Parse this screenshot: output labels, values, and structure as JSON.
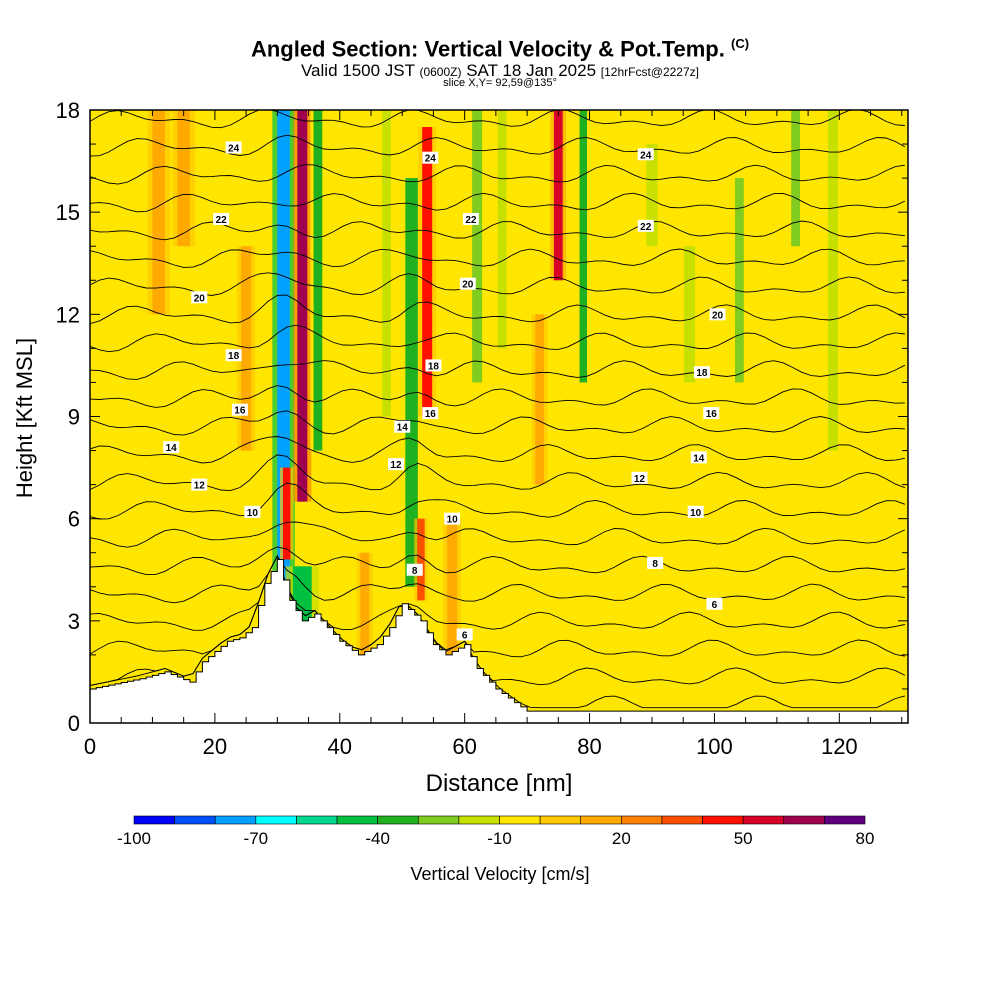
{
  "chart_data": {
    "type": "heatmap",
    "title": "Angled Section: Vertical Velocity & Pot.Temp.",
    "title_suffix": "(C)",
    "subtitle": {
      "valid": "Valid 1500 JST",
      "zulu": "(0600Z)",
      "date": "SAT 18 Jan 2025",
      "forecast": "[12hrFcst@2227z]"
    },
    "slice_label": "slice X,Y= 92,59@135°",
    "xlabel": "Distance [nm]",
    "ylabel": "Height [Kft MSL]",
    "xlim": [
      0,
      131
    ],
    "ylim": [
      0,
      18
    ],
    "x_ticks": [
      "0",
      "20",
      "40",
      "60",
      "80",
      "100",
      "120"
    ],
    "y_ticks": [
      "0",
      "3",
      "6",
      "9",
      "12",
      "15",
      "18"
    ],
    "colorbar": {
      "label": "Vertical Velocity [cm/s]",
      "tick_labels": [
        "-100",
        "-70",
        "-40",
        "-10",
        "20",
        "50",
        "80"
      ],
      "colors": [
        "#0000ff",
        "#0050ff",
        "#00a0ff",
        "#00ffff",
        "#00d890",
        "#00c040",
        "#20b020",
        "#80cc20",
        "#c8e000",
        "#ffe600",
        "#ffc800",
        "#ffaa00",
        "#ff8000",
        "#ff5000",
        "#ff1000",
        "#d80028",
        "#a00050",
        "#600080"
      ]
    },
    "terrain_profile": [
      [
        0,
        1.0
      ],
      [
        8,
        1.3
      ],
      [
        12,
        1.5
      ],
      [
        16,
        1.2
      ],
      [
        18,
        1.8
      ],
      [
        20,
        2.1
      ],
      [
        22,
        2.4
      ],
      [
        24,
        2.5
      ],
      [
        26,
        2.8
      ],
      [
        28,
        4.1
      ],
      [
        30,
        4.8
      ],
      [
        32,
        3.6
      ],
      [
        34,
        3.0
      ],
      [
        36,
        3.2
      ],
      [
        38,
        2.8
      ],
      [
        40,
        2.4
      ],
      [
        43,
        2.0
      ],
      [
        46,
        2.3
      ],
      [
        48,
        2.8
      ],
      [
        50,
        3.5
      ],
      [
        53,
        3.0
      ],
      [
        55,
        2.3
      ],
      [
        57,
        2.0
      ],
      [
        60,
        2.3
      ],
      [
        62,
        1.6
      ],
      [
        65,
        1.0
      ],
      [
        68,
        0.6
      ],
      [
        70,
        0.35
      ],
      [
        131,
        0.35
      ]
    ],
    "vertical_velocity_cells": [
      {
        "x": 31,
        "w": 2.0,
        "y0": 3.5,
        "y1": 18,
        "w_cms": -75
      },
      {
        "x": 34,
        "w": 1.6,
        "y0": 6.5,
        "y1": 18,
        "w_cms": 65
      },
      {
        "x": 36.5,
        "w": 1.4,
        "y0": 8,
        "y1": 18,
        "w_cms": -40
      },
      {
        "x": 31.5,
        "w": 1.2,
        "y0": 4.8,
        "y1": 7.5,
        "w_cms": 45
      },
      {
        "x": 34,
        "w": 3.0,
        "y0": 2.8,
        "y1": 4.6,
        "w_cms": -45
      },
      {
        "x": 51.5,
        "w": 2.0,
        "y0": 4.0,
        "y1": 16,
        "w_cms": -35
      },
      {
        "x": 54,
        "w": 1.6,
        "y0": 9,
        "y1": 17.5,
        "w_cms": 40
      },
      {
        "x": 53,
        "w": 1.2,
        "y0": 3.6,
        "y1": 6.0,
        "w_cms": 35
      },
      {
        "x": 47.5,
        "w": 1.4,
        "y0": 9,
        "y1": 18,
        "w_cms": -20
      },
      {
        "x": 62,
        "w": 1.6,
        "y0": 10,
        "y1": 18,
        "w_cms": -25
      },
      {
        "x": 66,
        "w": 1.4,
        "y0": 11,
        "y1": 18,
        "w_cms": -15
      },
      {
        "x": 75,
        "w": 1.4,
        "y0": 13,
        "y1": 18,
        "w_cms": 50
      },
      {
        "x": 79,
        "w": 1.2,
        "y0": 10,
        "y1": 18,
        "w_cms": -35
      },
      {
        "x": 72,
        "w": 1.4,
        "y0": 7,
        "y1": 12,
        "w_cms": 15
      },
      {
        "x": 90,
        "w": 1.8,
        "y0": 14,
        "y1": 17,
        "w_cms": -15
      },
      {
        "x": 96,
        "w": 1.8,
        "y0": 10,
        "y1": 14,
        "w_cms": -20
      },
      {
        "x": 104,
        "w": 1.4,
        "y0": 10,
        "y1": 16,
        "w_cms": -25
      },
      {
        "x": 113,
        "w": 1.4,
        "y0": 14,
        "y1": 18,
        "w_cms": -30
      },
      {
        "x": 119,
        "w": 1.6,
        "y0": 8,
        "y1": 18,
        "w_cms": -20
      },
      {
        "x": 11,
        "w": 2.0,
        "y0": 12,
        "y1": 18,
        "w_cms": 15
      },
      {
        "x": 15,
        "w": 2.0,
        "y0": 14,
        "y1": 18,
        "w_cms": 10
      },
      {
        "x": 25,
        "w": 1.6,
        "y0": 8,
        "y1": 14,
        "w_cms": 15
      },
      {
        "x": 58,
        "w": 1.6,
        "y0": 2.0,
        "y1": 6,
        "w_cms": 15
      },
      {
        "x": 44,
        "w": 1.4,
        "y0": 2.0,
        "y1": 5,
        "w_cms": 15
      }
    ],
    "isotherm_labels": [
      {
        "label": "24",
        "x": 23,
        "y": 16.9
      },
      {
        "label": "22",
        "x": 21,
        "y": 14.8
      },
      {
        "label": "20",
        "x": 17.5,
        "y": 12.5
      },
      {
        "label": "18",
        "x": 23,
        "y": 10.8
      },
      {
        "label": "16",
        "x": 24,
        "y": 9.2
      },
      {
        "label": "14",
        "x": 13,
        "y": 8.1
      },
      {
        "label": "12",
        "x": 17.5,
        "y": 7.0
      },
      {
        "label": "10",
        "x": 26,
        "y": 6.2
      },
      {
        "label": "24",
        "x": 54.5,
        "y": 16.6
      },
      {
        "label": "22",
        "x": 61,
        "y": 14.8
      },
      {
        "label": "20",
        "x": 60.5,
        "y": 12.9
      },
      {
        "label": "18",
        "x": 55,
        "y": 10.5
      },
      {
        "label": "16",
        "x": 54.5,
        "y": 9.1
      },
      {
        "label": "14",
        "x": 50,
        "y": 8.7
      },
      {
        "label": "12",
        "x": 49,
        "y": 7.6
      },
      {
        "label": "10",
        "x": 58,
        "y": 6.0
      },
      {
        "label": "8",
        "x": 52,
        "y": 4.5
      },
      {
        "label": "6",
        "x": 60,
        "y": 2.6
      },
      {
        "label": "24",
        "x": 89,
        "y": 16.7
      },
      {
        "label": "22",
        "x": 89,
        "y": 14.6
      },
      {
        "label": "20",
        "x": 100.5,
        "y": 12.0
      },
      {
        "label": "18",
        "x": 98,
        "y": 10.3
      },
      {
        "label": "16",
        "x": 99.5,
        "y": 9.1
      },
      {
        "label": "14",
        "x": 97.5,
        "y": 7.8
      },
      {
        "label": "12",
        "x": 88,
        "y": 7.2
      },
      {
        "label": "10",
        "x": 97,
        "y": 6.2
      },
      {
        "label": "8",
        "x": 90.5,
        "y": 4.7
      },
      {
        "label": "6",
        "x": 100,
        "y": 3.5
      }
    ]
  }
}
